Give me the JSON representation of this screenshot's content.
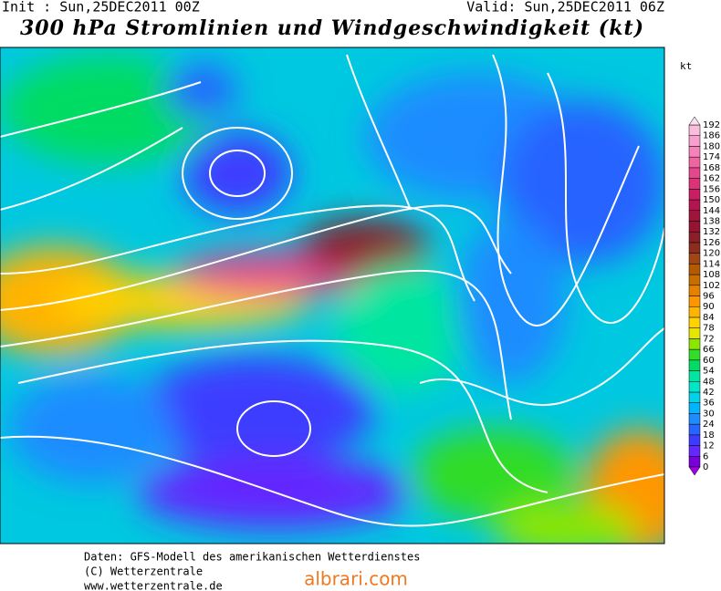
{
  "header": {
    "init": "Init : Sun,25DEC2011 00Z",
    "valid": "Valid: Sun,25DEC2011 06Z",
    "title": "300 hPa Stromlinien und Windgeschwindigkeit (kt)"
  },
  "colorbar": {
    "unit": "kt",
    "levels": [
      0,
      6,
      12,
      18,
      24,
      30,
      36,
      42,
      48,
      54,
      60,
      66,
      72,
      78,
      84,
      90,
      96,
      102,
      108,
      114,
      120,
      126,
      132,
      138,
      144,
      150,
      156,
      162,
      168,
      174,
      180,
      186,
      192
    ],
    "colors": [
      "#7800dc",
      "#6428ff",
      "#3c3cff",
      "#2864ff",
      "#1e8cff",
      "#00b4ff",
      "#00d2eb",
      "#00e6c8",
      "#00e6a0",
      "#00dc64",
      "#32dc28",
      "#8ce600",
      "#e6e600",
      "#ffd200",
      "#ffb400",
      "#ff9600",
      "#e68200",
      "#c86e00",
      "#b45a00",
      "#a04614",
      "#8c2d1e",
      "#8c1e28",
      "#961432",
      "#a0143c",
      "#b41450",
      "#c81e64",
      "#dc3278",
      "#e6468c",
      "#f064a0",
      "#f582b9",
      "#f8a0cd",
      "#fabedc"
    ]
  },
  "footer": {
    "lines": [
      "Daten: GFS-Modell des amerikanischen Wetterdienstes",
      "(C) Wetterzentrale",
      "www.wetterzentrale.de"
    ],
    "watermark": "albrari.com"
  }
}
